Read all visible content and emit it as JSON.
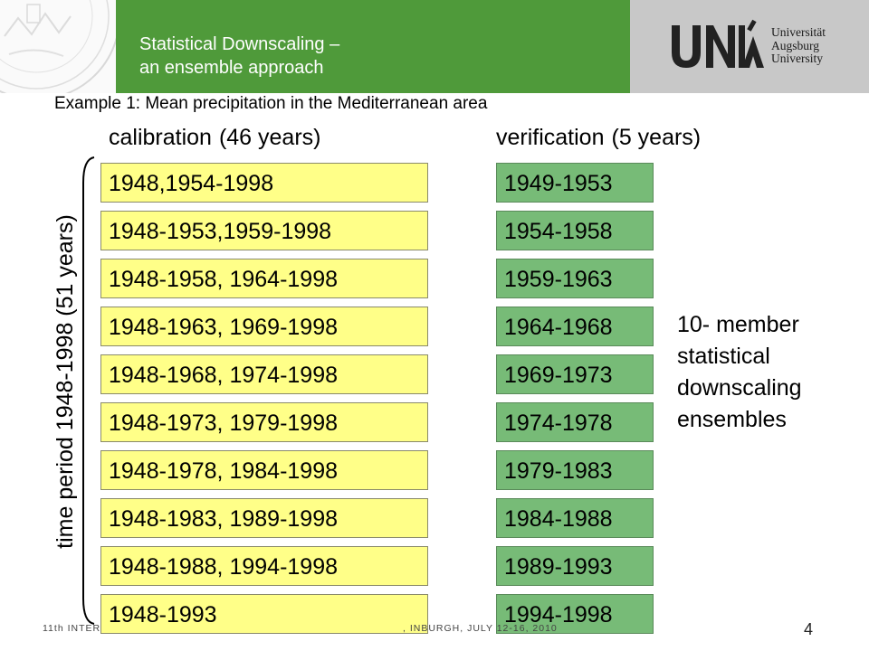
{
  "header": {
    "title_line1": "Statistical Downscaling –",
    "title_line2": "an ensemble approach",
    "logo_text": [
      "Universität",
      "Augsburg",
      "University"
    ],
    "accent_color": "#4f9a3a"
  },
  "subtitle": "Example 1: Mean precipitation in the Mediterranean area",
  "calibration": {
    "heading": "calibration",
    "duration": "(46 years)",
    "periods": [
      "1948,1954-1998",
      "1948-1953,1959-1998",
      "1948-1958, 1964-1998",
      "1948-1963, 1969-1998",
      "1948-1968, 1974-1998",
      "1948-1973, 1979-1998",
      "1948-1978, 1984-1998",
      "1948-1983, 1989-1998",
      "1948-1988, 1994-1998",
      "1948-1993"
    ]
  },
  "verification": {
    "heading": "verification",
    "duration": "(5 years)",
    "periods": [
      "1949-1953",
      "1954-1958",
      "1959-1963",
      "1964-1968",
      "1969-1973",
      "1974-1978",
      "1979-1983",
      "1984-1988",
      "1989-1993",
      "1994-1998"
    ]
  },
  "time_period_label": "time period 1948-1998 (51 years)",
  "ensemble_note": [
    "10- member",
    "statistical",
    "downscaling",
    "ensembles"
  ],
  "footer": {
    "left": "11th INTER",
    "right": ", INBURGH,  JULY 12-16, 2010"
  },
  "page_number": "4"
}
